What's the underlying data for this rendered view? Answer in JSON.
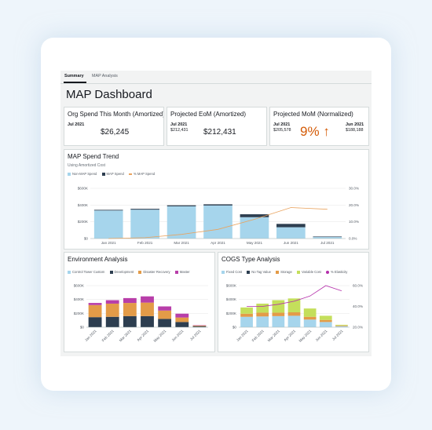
{
  "tabs": [
    {
      "label": "Summary",
      "active": true
    },
    {
      "label": "MAP Analysis",
      "active": false
    }
  ],
  "dashboard_title": "MAP Dashboard",
  "kpis": {
    "org_spend": {
      "title": "Org Spend This Month (Amortized)",
      "period": "Jul 2021",
      "value": "$26,245"
    },
    "projected_eom": {
      "title": "Projected EoM (Amortized)",
      "period": "Jul 2021",
      "prev_value": "$212,431",
      "value": "$212,431"
    },
    "projected_mom": {
      "title": "Projected MoM (Normalized)",
      "left_period": "Jul 2021",
      "left_value": "$205,578",
      "pct": "9%",
      "arrow": "↑",
      "right_period": "Jun 2021",
      "right_value": "$188,188"
    }
  },
  "colors": {
    "light_blue": "#a6d5ec",
    "dark_navy": "#2d3e50",
    "orange_line": "#e9a35e",
    "tan": "#e39b48",
    "magenta": "#b83ea9",
    "lime": "#c4df5b",
    "purple_line": "#b42eaa",
    "accent_orange": "#d45b07"
  },
  "chart_data": [
    {
      "type": "bar",
      "title": "MAP Spend Trend",
      "subtitle": "Using Amortized Cost",
      "legend": [
        "Non-MAP Spend",
        "MAP Spend",
        "% MAP Spend"
      ],
      "categories": [
        "Jan 2021",
        "Feb 2021",
        "Mar 2021",
        "Apr 2021",
        "May 2021",
        "Jun 2021",
        "Jul 2021"
      ],
      "series": [
        {
          "name": "Non-MAP Spend",
          "values": [
            335000,
            345000,
            385000,
            395000,
            255000,
            135000,
            18000
          ]
        },
        {
          "name": "MAP Spend",
          "values": [
            8000,
            10000,
            12000,
            14000,
            35000,
            40000,
            6000
          ]
        },
        {
          "name": "% MAP Spend",
          "axis": "right",
          "values": [
            0.0,
            0.5,
            2.5,
            5.5,
            11.5,
            18.5,
            17.5
          ]
        }
      ],
      "y_ticks": [
        "$0",
        "$200K",
        "$400K",
        "$600K"
      ],
      "y2_ticks": [
        "0.0%",
        "10.0%",
        "20.0%",
        "30.0%"
      ],
      "ylim": [
        0,
        600000
      ],
      "y2lim": [
        0,
        30
      ],
      "legend_position": "top-left"
    },
    {
      "type": "bar",
      "title": "Environment Analysis",
      "legend": [
        "Control Tower Custom",
        "Development",
        "Disaster Recovery",
        "Master"
      ],
      "categories": [
        "Jan 2021",
        "Feb 2021",
        "Mar 2021",
        "Apr 2021",
        "May 2021",
        "Jun 2021",
        "Jul 2021"
      ],
      "series": [
        {
          "name": "Control Tower Custom",
          "values": [
            0,
            0,
            0,
            0,
            0,
            0,
            0
          ]
        },
        {
          "name": "Development",
          "values": [
            145000,
            150000,
            160000,
            160000,
            120000,
            75000,
            15000
          ]
        },
        {
          "name": "Disaster Recovery",
          "values": [
            175000,
            190000,
            190000,
            195000,
            120000,
            65000,
            10000
          ]
        },
        {
          "name": "Master",
          "values": [
            30000,
            50000,
            70000,
            90000,
            60000,
            55000,
            5000
          ]
        }
      ],
      "y_ticks": [
        "$0",
        "$200K",
        "$400K",
        "$600K"
      ],
      "ylim": [
        0,
        600000
      ],
      "legend_position": "top-left"
    },
    {
      "type": "bar",
      "title": "COGS Type Analysis",
      "legend": [
        "Fixed Cost",
        "No Tag Value",
        "Storage",
        "Variable Cost",
        "% Elasticity"
      ],
      "categories": [
        "Jan 2021",
        "Feb 2021",
        "Mar 2021",
        "Apr 2021",
        "May 2021",
        "Jun 2021",
        "Jul 2021"
      ],
      "series": [
        {
          "name": "Fixed Cost",
          "values": [
            150000,
            155000,
            160000,
            165000,
            110000,
            75000,
            15000
          ]
        },
        {
          "name": "No Tag Value",
          "values": [
            0,
            0,
            0,
            0,
            0,
            0,
            0
          ]
        },
        {
          "name": "Storage",
          "values": [
            45000,
            55000,
            50000,
            50000,
            40000,
            30000,
            10000
          ]
        },
        {
          "name": "Variable Cost",
          "values": [
            90000,
            130000,
            180000,
            200000,
            120000,
            60000,
            10000
          ]
        },
        {
          "name": "% Elasticity",
          "axis": "right",
          "values": [
            40.0,
            40.0,
            42.0,
            45.0,
            50.0,
            60.0,
            55.0
          ]
        }
      ],
      "y_ticks": [
        "$0",
        "$200K",
        "$400K",
        "$600K"
      ],
      "y2_ticks": [
        "20.0%",
        "40.0%",
        "60.0%"
      ],
      "ylim": [
        0,
        600000
      ],
      "y2lim": [
        20,
        60
      ],
      "legend_position": "top-left"
    }
  ]
}
